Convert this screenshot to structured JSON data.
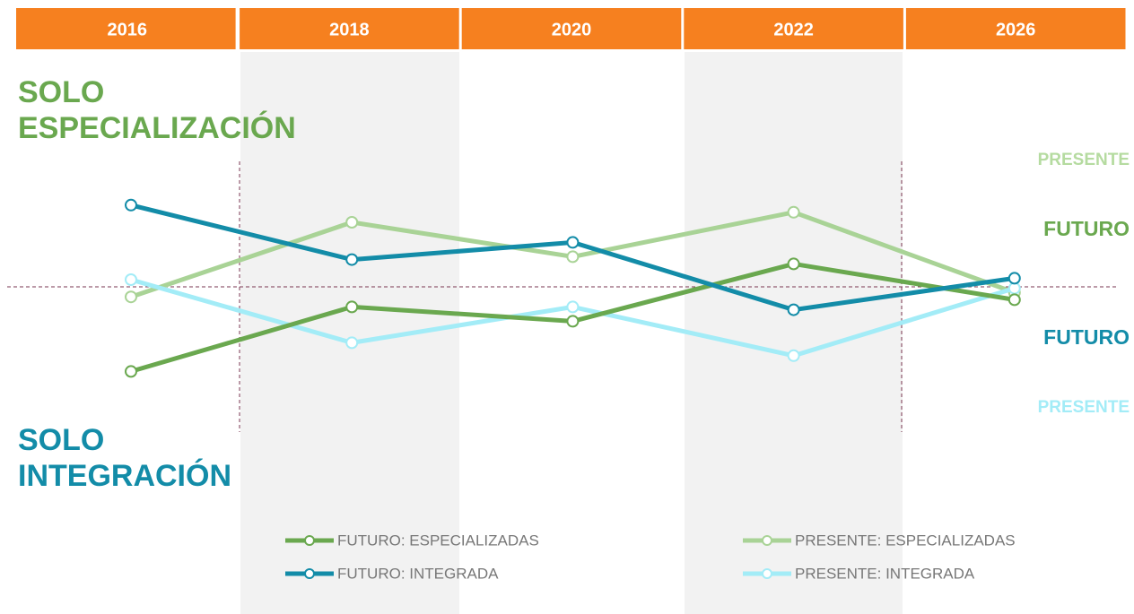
{
  "chart_data": {
    "type": "line",
    "categories": [
      "2016",
      "2018",
      "2020",
      "2022",
      "2026"
    ],
    "ylim": [
      -100,
      100
    ],
    "top_label": {
      "lines": [
        "SOLO",
        "ESPECIALIZACIÓN"
      ],
      "color": "#6aa84f"
    },
    "bottom_label": {
      "lines": [
        "SOLO",
        "INTEGRACIÓN"
      ],
      "color": "#138ca8"
    },
    "annotations": [
      {
        "text": "PRESENTE",
        "color": "#b5dba0"
      },
      {
        "text": "FUTURO",
        "color": "#6aa84f"
      },
      {
        "text": "FUTURO",
        "color": "#138ca8"
      },
      {
        "text": "PRESENTE",
        "color": "#a3ecf7"
      }
    ],
    "series": [
      {
        "name": "FUTURO: ESPECIALIZADAS",
        "color": "#6aa84f",
        "values": [
          -59,
          -14,
          -24,
          16,
          -9
        ]
      },
      {
        "name": "PRESENTE: ESPECIALIZADAS",
        "color": "#a9d396",
        "values": [
          -7,
          45,
          21,
          52,
          -4
        ]
      },
      {
        "name": "FUTURO: INTEGRADA",
        "color": "#138ca8",
        "values": [
          57,
          19,
          31,
          -16,
          6
        ]
      },
      {
        "name": "PRESENTE: INTEGRADA",
        "color": "#a3ecf7",
        "values": [
          5,
          -39,
          -14,
          -48,
          -1
        ]
      }
    ]
  }
}
